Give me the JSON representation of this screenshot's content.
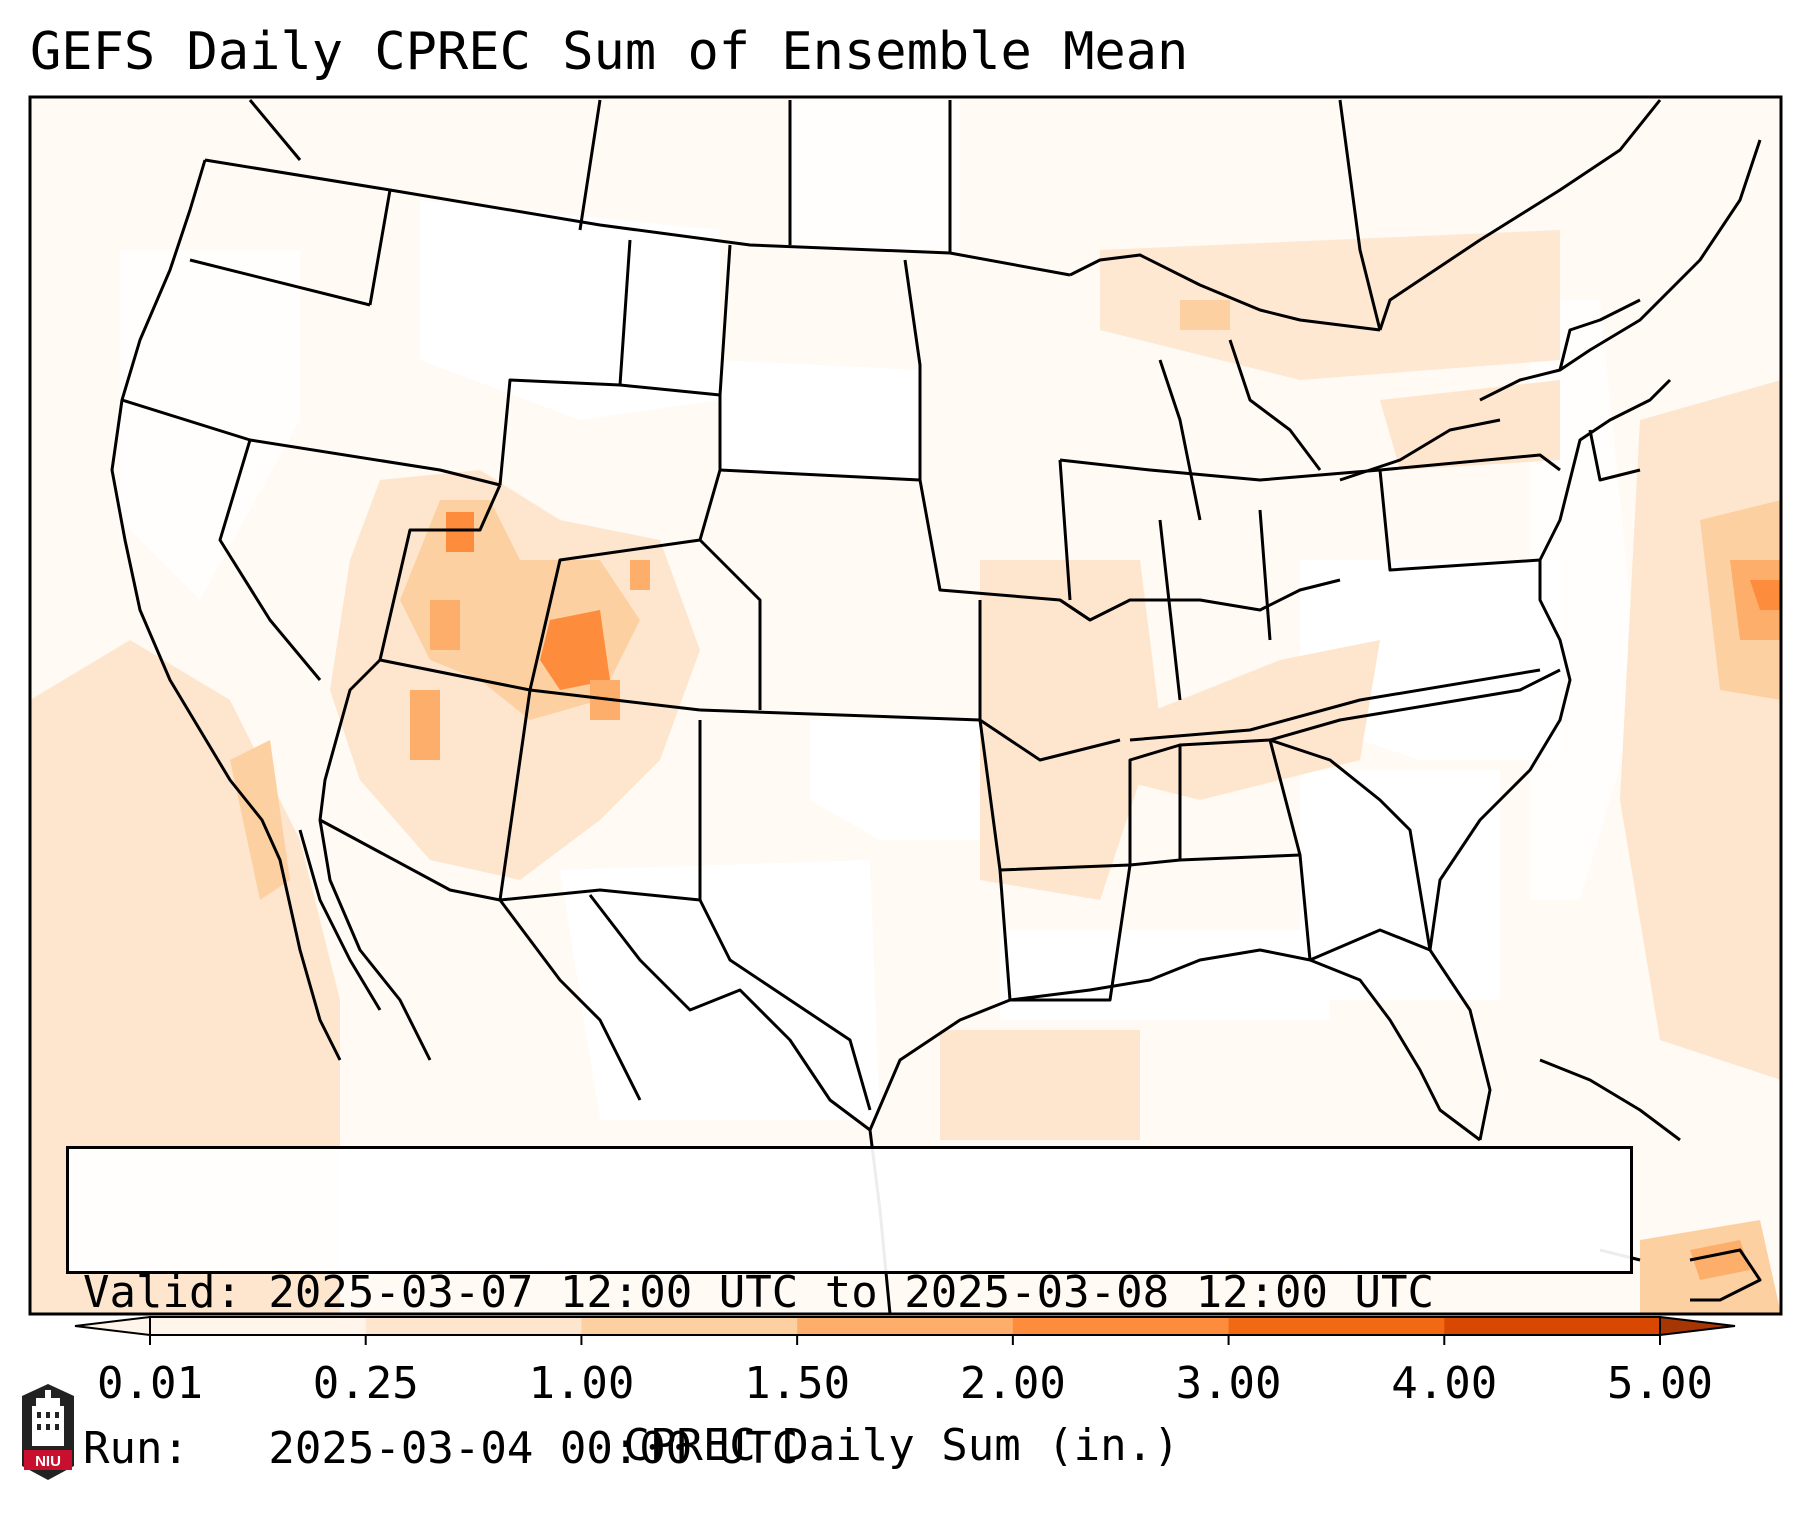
{
  "title": "GEFS Daily CPREC Sum of Ensemble Mean",
  "info": {
    "valid_line": "Valid: 2025-03-07 12:00 UTC to 2025-03-08 12:00 UTC",
    "run_line": "Run:   2025-03-04 00:00 UTC"
  },
  "colorbar": {
    "label": "CPREC Daily Sum (in.)",
    "ticks": [
      "0.01",
      "0.25",
      "1.00",
      "1.50",
      "2.00",
      "3.00",
      "4.00",
      "5.00"
    ],
    "colors": [
      "#fff5eb",
      "#fee6ce",
      "#fdd0a2",
      "#fdae6b",
      "#fd8d3c",
      "#f16913",
      "#d94801",
      "#a63603"
    ]
  },
  "logo": {
    "text": "NIU"
  },
  "icons": {
    "logo": "niu-tower-logo-icon"
  }
}
